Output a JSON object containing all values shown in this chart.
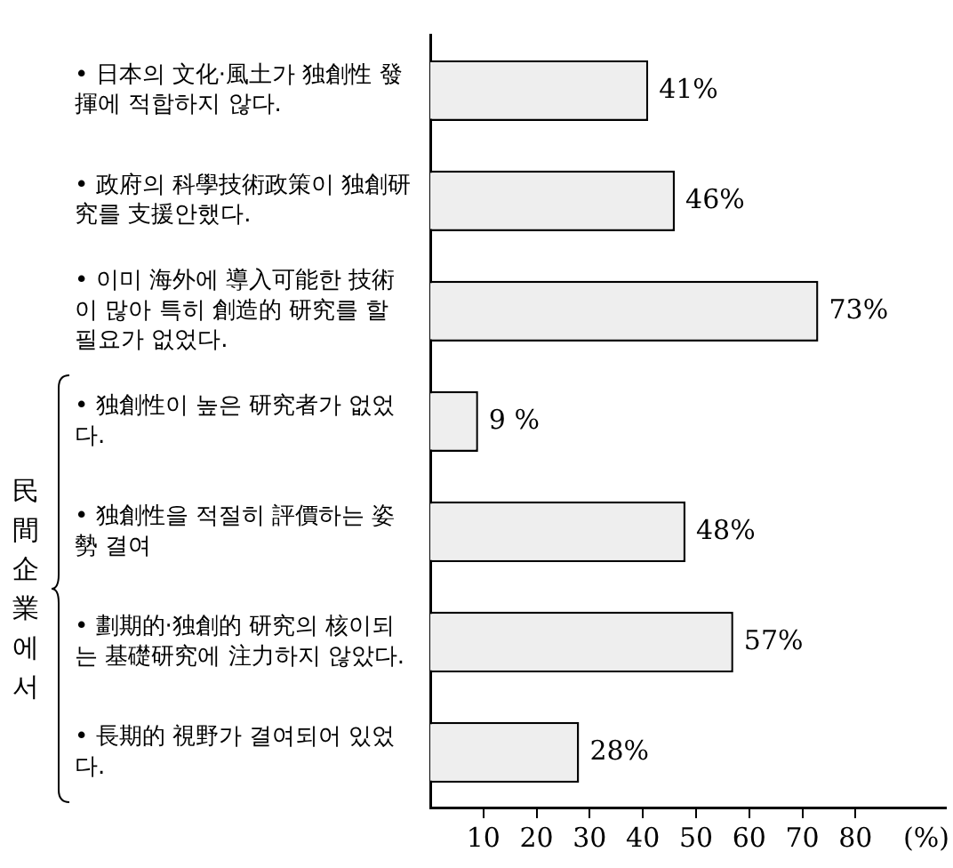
{
  "chart_data": {
    "type": "bar",
    "orientation": "horizontal",
    "categories": [
      "• 日本의 文化·風土가 独創性 發揮에 적합하지 않다.",
      "• 政府의 科學技術政策이 独創研究를 支援안했다.",
      "• 이미 海外에 導入可能한 技術이 많아 특히 創造的 研究를 할 필요가 없었다.",
      "• 独創性이 높은 研究者가 없었다.",
      "• 独創性을 적절히 評價하는 姿勢 결여",
      "• 劃期的·独創的 研究의 核이되는 基礎研究에 注力하지 않았다.",
      "• 長期的 視野가 결여되어 있었다."
    ],
    "values": [
      41,
      46,
      73,
      9,
      48,
      57,
      28
    ],
    "value_labels": [
      "41%",
      "46%",
      "73%",
      "9 %",
      "48%",
      "57%",
      "28%"
    ],
    "color": "#eeeeee",
    "xlim": [
      0,
      97
    ],
    "xticks": [
      10,
      20,
      30,
      40,
      50,
      60,
      70,
      80
    ],
    "xlabel": "(%)",
    "annotations": [
      "民間企業에서"
    ]
  }
}
